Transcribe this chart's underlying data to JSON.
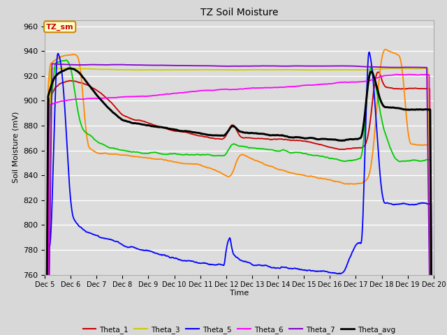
{
  "title": "TZ Soil Moisture",
  "xlabel": "Time",
  "ylabel": "Soil Moisture (mV)",
  "ylim": [
    760,
    965
  ],
  "yticks": [
    760,
    780,
    800,
    820,
    840,
    860,
    880,
    900,
    920,
    940,
    960
  ],
  "xtick_positions": [
    5,
    6,
    7,
    8,
    9,
    10,
    11,
    12,
    13,
    14,
    15,
    16,
    17,
    18,
    19,
    20
  ],
  "xtick_labels": [
    "Dec 5",
    "Dec 6",
    "Dec 7",
    "Dec 8",
    "Dec 9",
    "Dec 10",
    "Dec 11",
    "Dec 12",
    "Dec 13",
    "Dec 14",
    "Dec 15",
    "Dec 16",
    "Dec 17",
    "Dec 18",
    "Dec 19",
    "Dec 20"
  ],
  "colors": {
    "Theta_1": "#cc0000",
    "Theta_2": "#ff8800",
    "Theta_3": "#cccc00",
    "Theta_4": "#00cc00",
    "Theta_5": "#0000ff",
    "Theta_6": "#ff00ff",
    "Theta_7": "#8800cc",
    "Theta_avg": "#000000"
  },
  "bg_color": "#dcdcdc",
  "grid_color": "#ffffff",
  "fig_bg": "#d8d8d8",
  "annotation_text": "TZ_sm",
  "annotation_bg": "#ffffcc",
  "annotation_border": "#cc8800"
}
